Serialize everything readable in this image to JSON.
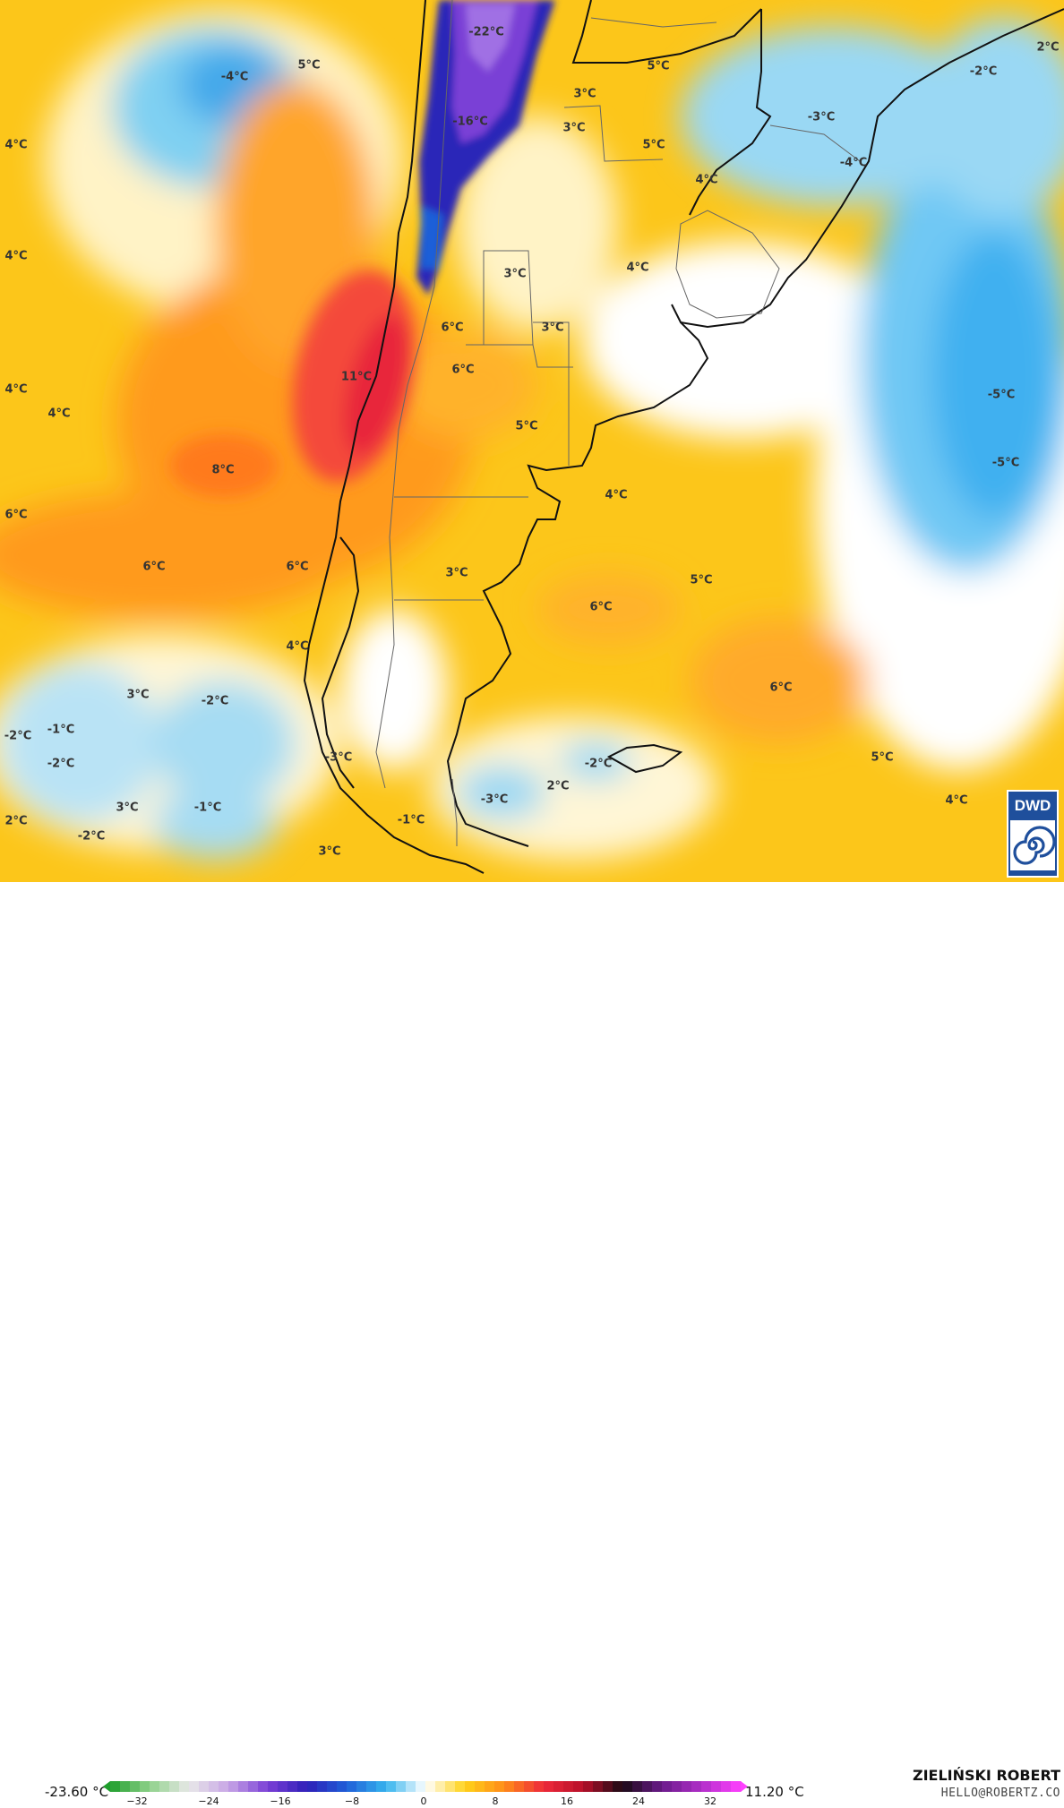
{
  "colorbar": {
    "min_label": "-23.60 °C",
    "max_label": "11.20 °C",
    "ticks": [
      "−32",
      "−24",
      "−16",
      "−8",
      "0",
      "8",
      "16",
      "24",
      "32"
    ],
    "stops": [
      {
        "v": -32,
        "c": "#1f9e2c"
      },
      {
        "v": -28,
        "c": "#8fd18a"
      },
      {
        "v": -24,
        "c": "#e8e8e8"
      },
      {
        "v": -20,
        "c": "#c8a6e6"
      },
      {
        "v": -16,
        "c": "#7a3fd6"
      },
      {
        "v": -12,
        "c": "#2e1fb8"
      },
      {
        "v": -8,
        "c": "#1f5fd8"
      },
      {
        "v": -4,
        "c": "#36b4ee"
      },
      {
        "v": 0,
        "c": "#ffffff"
      },
      {
        "v": 4,
        "c": "#ffd21a"
      },
      {
        "v": 8,
        "c": "#ff8c1a"
      },
      {
        "v": 12,
        "c": "#ee2a3a"
      },
      {
        "v": 16,
        "c": "#b8102a"
      },
      {
        "v": 20,
        "c": "#1a0a14"
      },
      {
        "v": 24,
        "c": "#6a1a8a"
      },
      {
        "v": 28,
        "c": "#b02fc8"
      },
      {
        "v": 32,
        "c": "#ff40ff"
      }
    ]
  },
  "branding": {
    "author": "ZIELIŃSKI ROBERT",
    "email": "HELLO@ROBERTZ.CO",
    "logo_text": "DWD",
    "logo_icon": "swirl-icon"
  },
  "map_labels": [
    {
      "text": "-22°C"
    },
    {
      "text": "-16°C"
    },
    {
      "text": "-4°C"
    },
    {
      "text": "5°C"
    },
    {
      "text": "4°C"
    },
    {
      "text": "4°C"
    },
    {
      "text": "3°C"
    },
    {
      "text": "3°C"
    },
    {
      "text": "5°C"
    },
    {
      "text": "5°C"
    },
    {
      "text": "-3°C"
    },
    {
      "text": "-4°C"
    },
    {
      "text": "-2°C"
    },
    {
      "text": "2°C"
    },
    {
      "text": "4°C"
    },
    {
      "text": "3°C"
    },
    {
      "text": "4°C"
    },
    {
      "text": "6°C"
    },
    {
      "text": "3°C"
    },
    {
      "text": "6°C"
    },
    {
      "text": "11°C"
    },
    {
      "text": "4°C"
    },
    {
      "text": "4°C"
    },
    {
      "text": "8°C"
    },
    {
      "text": "5°C"
    },
    {
      "text": "-5°C"
    },
    {
      "text": "-5°C"
    },
    {
      "text": "6°C"
    },
    {
      "text": "4°C"
    },
    {
      "text": "6°C"
    },
    {
      "text": "6°C"
    },
    {
      "text": "3°C"
    },
    {
      "text": "5°C"
    },
    {
      "text": "6°C"
    },
    {
      "text": "4°C"
    },
    {
      "text": "6°C"
    },
    {
      "text": "3°C"
    },
    {
      "text": "-2°C"
    },
    {
      "text": "-2°C"
    },
    {
      "text": "-1°C"
    },
    {
      "text": "-2°C"
    },
    {
      "text": "-3°C"
    },
    {
      "text": "-2°C"
    },
    {
      "text": "2°C"
    },
    {
      "text": "-3°C"
    },
    {
      "text": "5°C"
    },
    {
      "text": "2°C"
    },
    {
      "text": "3°C"
    },
    {
      "text": "-1°C"
    },
    {
      "text": "-2°C"
    },
    {
      "text": "-1°C"
    },
    {
      "text": "3°C"
    },
    {
      "text": "4°C"
    }
  ]
}
